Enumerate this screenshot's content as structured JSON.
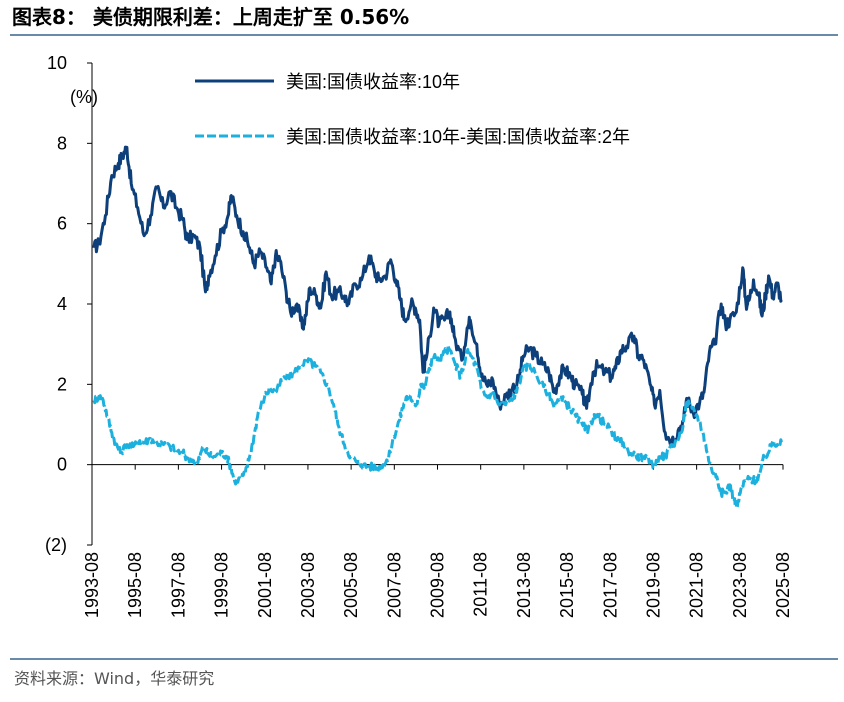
{
  "header": {
    "title": "图表8：  美债期限利差：上周走扩至 0.56%"
  },
  "footer": {
    "source": "资料来源：Wind，华泰研究"
  },
  "chart_data": {
    "type": "line",
    "title": "美债期限利差：上周走扩至 0.56%",
    "ylabel": "(%)",
    "xlabel": "",
    "ylim": [
      -2,
      10
    ],
    "yticks": [
      10,
      8,
      6,
      4,
      2,
      0,
      -2
    ],
    "ytick_labels": [
      "10",
      "8",
      "6",
      "4",
      "2",
      "0",
      "(2)"
    ],
    "xlim": [
      1993.58,
      2025.67
    ],
    "xtick_labels": [
      "1993-08",
      "1995-08",
      "1997-08",
      "1999-08",
      "2001-08",
      "2003-08",
      "2005-08",
      "2007-08",
      "2009-08",
      "2011-08",
      "2013-08",
      "2015-08",
      "2017-08",
      "2019-08",
      "2021-08",
      "2023-08",
      "2025-08"
    ],
    "legend_position": "top",
    "series": [
      {
        "name": "美国:国债收益率:10年",
        "style": "solid",
        "color": "#0d3f7a",
        "points": [
          [
            1993.67,
            5.4
          ],
          [
            1993.9,
            5.5
          ],
          [
            1994.2,
            6.2
          ],
          [
            1994.5,
            7.2
          ],
          [
            1994.8,
            7.5
          ],
          [
            1995.0,
            7.7
          ],
          [
            1995.2,
            7.9
          ],
          [
            1995.4,
            7.0
          ],
          [
            1995.7,
            6.4
          ],
          [
            1996.0,
            5.7
          ],
          [
            1996.3,
            6.2
          ],
          [
            1996.6,
            6.9
          ],
          [
            1996.9,
            6.4
          ],
          [
            1997.2,
            6.8
          ],
          [
            1997.5,
            6.4
          ],
          [
            1997.8,
            6.1
          ],
          [
            1998.0,
            5.6
          ],
          [
            1998.3,
            5.7
          ],
          [
            1998.6,
            5.4
          ],
          [
            1998.85,
            4.3
          ],
          [
            1999.0,
            4.7
          ],
          [
            1999.3,
            5.2
          ],
          [
            1999.6,
            5.8
          ],
          [
            1999.9,
            6.2
          ],
          [
            2000.05,
            6.7
          ],
          [
            2000.3,
            6.2
          ],
          [
            2000.6,
            5.8
          ],
          [
            2000.9,
            5.4
          ],
          [
            2001.1,
            5.0
          ],
          [
            2001.4,
            5.3
          ],
          [
            2001.7,
            4.9
          ],
          [
            2001.9,
            4.5
          ],
          [
            2002.1,
            5.2
          ],
          [
            2002.3,
            5.1
          ],
          [
            2002.6,
            4.3
          ],
          [
            2002.8,
            3.8
          ],
          [
            2003.1,
            4.0
          ],
          [
            2003.35,
            3.4
          ],
          [
            2003.5,
            3.7
          ],
          [
            2003.7,
            4.4
          ],
          [
            2004.0,
            4.2
          ],
          [
            2004.2,
            3.9
          ],
          [
            2004.45,
            4.8
          ],
          [
            2004.7,
            4.2
          ],
          [
            2005.0,
            4.3
          ],
          [
            2005.3,
            4.2
          ],
          [
            2005.5,
            4.0
          ],
          [
            2005.8,
            4.5
          ],
          [
            2006.1,
            4.6
          ],
          [
            2006.45,
            5.2
          ],
          [
            2006.7,
            4.8
          ],
          [
            2006.9,
            4.6
          ],
          [
            2007.2,
            4.7
          ],
          [
            2007.45,
            5.1
          ],
          [
            2007.7,
            4.6
          ],
          [
            2007.9,
            4.1
          ],
          [
            2008.1,
            3.6
          ],
          [
            2008.4,
            4.0
          ],
          [
            2008.6,
            3.9
          ],
          [
            2008.8,
            3.6
          ],
          [
            2008.95,
            2.3
          ],
          [
            2009.15,
            2.8
          ],
          [
            2009.45,
            3.9
          ],
          [
            2009.7,
            3.5
          ],
          [
            2009.95,
            3.6
          ],
          [
            2010.2,
            3.8
          ],
          [
            2010.4,
            3.2
          ],
          [
            2010.75,
            2.6
          ],
          [
            2011.0,
            3.4
          ],
          [
            2011.15,
            3.6
          ],
          [
            2011.45,
            3.0
          ],
          [
            2011.65,
            2.2
          ],
          [
            2011.9,
            2.0
          ],
          [
            2012.2,
            2.1
          ],
          [
            2012.5,
            1.5
          ],
          [
            2012.8,
            1.7
          ],
          [
            2013.1,
            1.9
          ],
          [
            2013.4,
            2.1
          ],
          [
            2013.6,
            2.7
          ],
          [
            2013.9,
            2.9
          ],
          [
            2014.2,
            2.7
          ],
          [
            2014.5,
            2.5
          ],
          [
            2014.8,
            2.3
          ],
          [
            2015.05,
            1.8
          ],
          [
            2015.3,
            2.2
          ],
          [
            2015.5,
            2.4
          ],
          [
            2015.8,
            2.2
          ],
          [
            2016.0,
            2.0
          ],
          [
            2016.35,
            1.75
          ],
          [
            2016.55,
            1.4
          ],
          [
            2016.85,
            2.3
          ],
          [
            2017.05,
            2.45
          ],
          [
            2017.4,
            2.3
          ],
          [
            2017.7,
            2.2
          ],
          [
            2017.9,
            2.4
          ],
          [
            2018.15,
            2.85
          ],
          [
            2018.4,
            2.95
          ],
          [
            2018.75,
            3.2
          ],
          [
            2018.95,
            2.7
          ],
          [
            2019.2,
            2.6
          ],
          [
            2019.5,
            2.0
          ],
          [
            2019.7,
            1.5
          ],
          [
            2019.95,
            1.85
          ],
          [
            2020.2,
            0.8
          ],
          [
            2020.5,
            0.6
          ],
          [
            2020.8,
            0.85
          ],
          [
            2021.05,
            1.1
          ],
          [
            2021.2,
            1.65
          ],
          [
            2021.5,
            1.3
          ],
          [
            2021.8,
            1.55
          ],
          [
            2022.0,
            1.8
          ],
          [
            2022.25,
            2.8
          ],
          [
            2022.5,
            3.0
          ],
          [
            2022.8,
            4.0
          ],
          [
            2023.0,
            3.5
          ],
          [
            2023.2,
            3.6
          ],
          [
            2023.5,
            3.8
          ],
          [
            2023.8,
            4.9
          ],
          [
            2023.95,
            4.0
          ],
          [
            2024.1,
            4.1
          ],
          [
            2024.3,
            4.6
          ],
          [
            2024.55,
            4.2
          ],
          [
            2024.7,
            3.7
          ],
          [
            2024.85,
            4.2
          ],
          [
            2025.0,
            4.7
          ],
          [
            2025.2,
            4.2
          ],
          [
            2025.4,
            4.5
          ],
          [
            2025.6,
            4.1
          ]
        ]
      },
      {
        "name": "美国:国债收益率:10年-美国:国债收益率:2年",
        "style": "dashed",
        "color": "#1bb0de",
        "points": [
          [
            1993.67,
            1.6
          ],
          [
            1993.9,
            1.7
          ],
          [
            1994.1,
            1.6
          ],
          [
            1994.3,
            1.2
          ],
          [
            1994.5,
            0.8
          ],
          [
            1994.7,
            0.5
          ],
          [
            1994.9,
            0.3
          ],
          [
            1995.2,
            0.5
          ],
          [
            1995.5,
            0.45
          ],
          [
            1995.8,
            0.6
          ],
          [
            1996.0,
            0.55
          ],
          [
            1996.3,
            0.65
          ],
          [
            1996.6,
            0.55
          ],
          [
            1996.9,
            0.5
          ],
          [
            1997.2,
            0.45
          ],
          [
            1997.5,
            0.35
          ],
          [
            1997.8,
            0.3
          ],
          [
            1998.0,
            0.15
          ],
          [
            1998.3,
            0.1
          ],
          [
            1998.5,
            0.05
          ],
          [
            1998.75,
            0.45
          ],
          [
            1999.0,
            0.25
          ],
          [
            1999.3,
            0.2
          ],
          [
            1999.6,
            0.3
          ],
          [
            1999.85,
            0.2
          ],
          [
            2000.05,
            -0.1
          ],
          [
            2000.2,
            -0.4
          ],
          [
            2000.5,
            -0.35
          ],
          [
            2000.7,
            -0.2
          ],
          [
            2000.9,
            0.2
          ],
          [
            2001.1,
            0.7
          ],
          [
            2001.3,
            1.3
          ],
          [
            2001.6,
            1.7
          ],
          [
            2001.85,
            1.9
          ],
          [
            2002.1,
            1.8
          ],
          [
            2002.4,
            2.1
          ],
          [
            2002.7,
            2.2
          ],
          [
            2002.95,
            2.3
          ],
          [
            2003.2,
            2.4
          ],
          [
            2003.5,
            2.6
          ],
          [
            2003.7,
            2.55
          ],
          [
            2003.95,
            2.45
          ],
          [
            2004.2,
            2.3
          ],
          [
            2004.5,
            2.0
          ],
          [
            2004.8,
            1.5
          ],
          [
            2005.0,
            1.0
          ],
          [
            2005.3,
            0.5
          ],
          [
            2005.6,
            0.2
          ],
          [
            2005.9,
            0.05
          ],
          [
            2006.1,
            0.0
          ],
          [
            2006.35,
            -0.05
          ],
          [
            2006.6,
            -0.05
          ],
          [
            2006.9,
            -0.1
          ],
          [
            2007.1,
            0.0
          ],
          [
            2007.35,
            0.15
          ],
          [
            2007.6,
            0.7
          ],
          [
            2007.85,
            1.1
          ],
          [
            2008.0,
            1.4
          ],
          [
            2008.2,
            1.7
          ],
          [
            2008.4,
            1.6
          ],
          [
            2008.65,
            1.5
          ],
          [
            2008.85,
            2.0
          ],
          [
            2009.0,
            1.9
          ],
          [
            2009.2,
            2.3
          ],
          [
            2009.4,
            2.7
          ],
          [
            2009.7,
            2.6
          ],
          [
            2009.95,
            2.8
          ],
          [
            2010.15,
            2.9
          ],
          [
            2010.45,
            2.5
          ],
          [
            2010.7,
            2.2
          ],
          [
            2011.0,
            2.8
          ],
          [
            2011.2,
            2.7
          ],
          [
            2011.45,
            2.4
          ],
          [
            2011.65,
            1.9
          ],
          [
            2011.9,
            1.7
          ],
          [
            2012.2,
            1.8
          ],
          [
            2012.45,
            1.5
          ],
          [
            2012.75,
            1.5
          ],
          [
            2013.0,
            1.6
          ],
          [
            2013.3,
            1.8
          ],
          [
            2013.55,
            2.3
          ],
          [
            2013.85,
            2.5
          ],
          [
            2014.15,
            2.3
          ],
          [
            2014.45,
            2.0
          ],
          [
            2014.75,
            1.8
          ],
          [
            2015.0,
            1.5
          ],
          [
            2015.25,
            1.6
          ],
          [
            2015.5,
            1.6
          ],
          [
            2015.8,
            1.4
          ],
          [
            2016.05,
            1.2
          ],
          [
            2016.35,
            1.0
          ],
          [
            2016.6,
            0.8
          ],
          [
            2016.9,
            1.25
          ],
          [
            2017.1,
            1.2
          ],
          [
            2017.4,
            1.0
          ],
          [
            2017.7,
            0.85
          ],
          [
            2017.95,
            0.6
          ],
          [
            2018.25,
            0.55
          ],
          [
            2018.5,
            0.3
          ],
          [
            2018.8,
            0.25
          ],
          [
            2019.0,
            0.2
          ],
          [
            2019.25,
            0.15
          ],
          [
            2019.5,
            0.1
          ],
          [
            2019.7,
            -0.05
          ],
          [
            2019.95,
            0.2
          ],
          [
            2020.2,
            0.2
          ],
          [
            2020.5,
            0.5
          ],
          [
            2020.75,
            0.6
          ],
          [
            2020.95,
            0.8
          ],
          [
            2021.2,
            1.55
          ],
          [
            2021.45,
            1.4
          ],
          [
            2021.7,
            1.2
          ],
          [
            2021.95,
            0.8
          ],
          [
            2022.15,
            0.3
          ],
          [
            2022.35,
            -0.1
          ],
          [
            2022.6,
            -0.3
          ],
          [
            2022.8,
            -0.7
          ],
          [
            2023.0,
            -0.7
          ],
          [
            2023.2,
            -0.5
          ],
          [
            2023.4,
            -0.9
          ],
          [
            2023.55,
            -1.05
          ],
          [
            2023.75,
            -0.55
          ],
          [
            2023.95,
            -0.4
          ],
          [
            2024.15,
            -0.35
          ],
          [
            2024.4,
            -0.4
          ],
          [
            2024.6,
            -0.2
          ],
          [
            2024.8,
            0.2
          ],
          [
            2025.0,
            0.3
          ],
          [
            2025.2,
            0.6
          ],
          [
            2025.4,
            0.5
          ],
          [
            2025.6,
            0.56
          ]
        ]
      }
    ]
  }
}
